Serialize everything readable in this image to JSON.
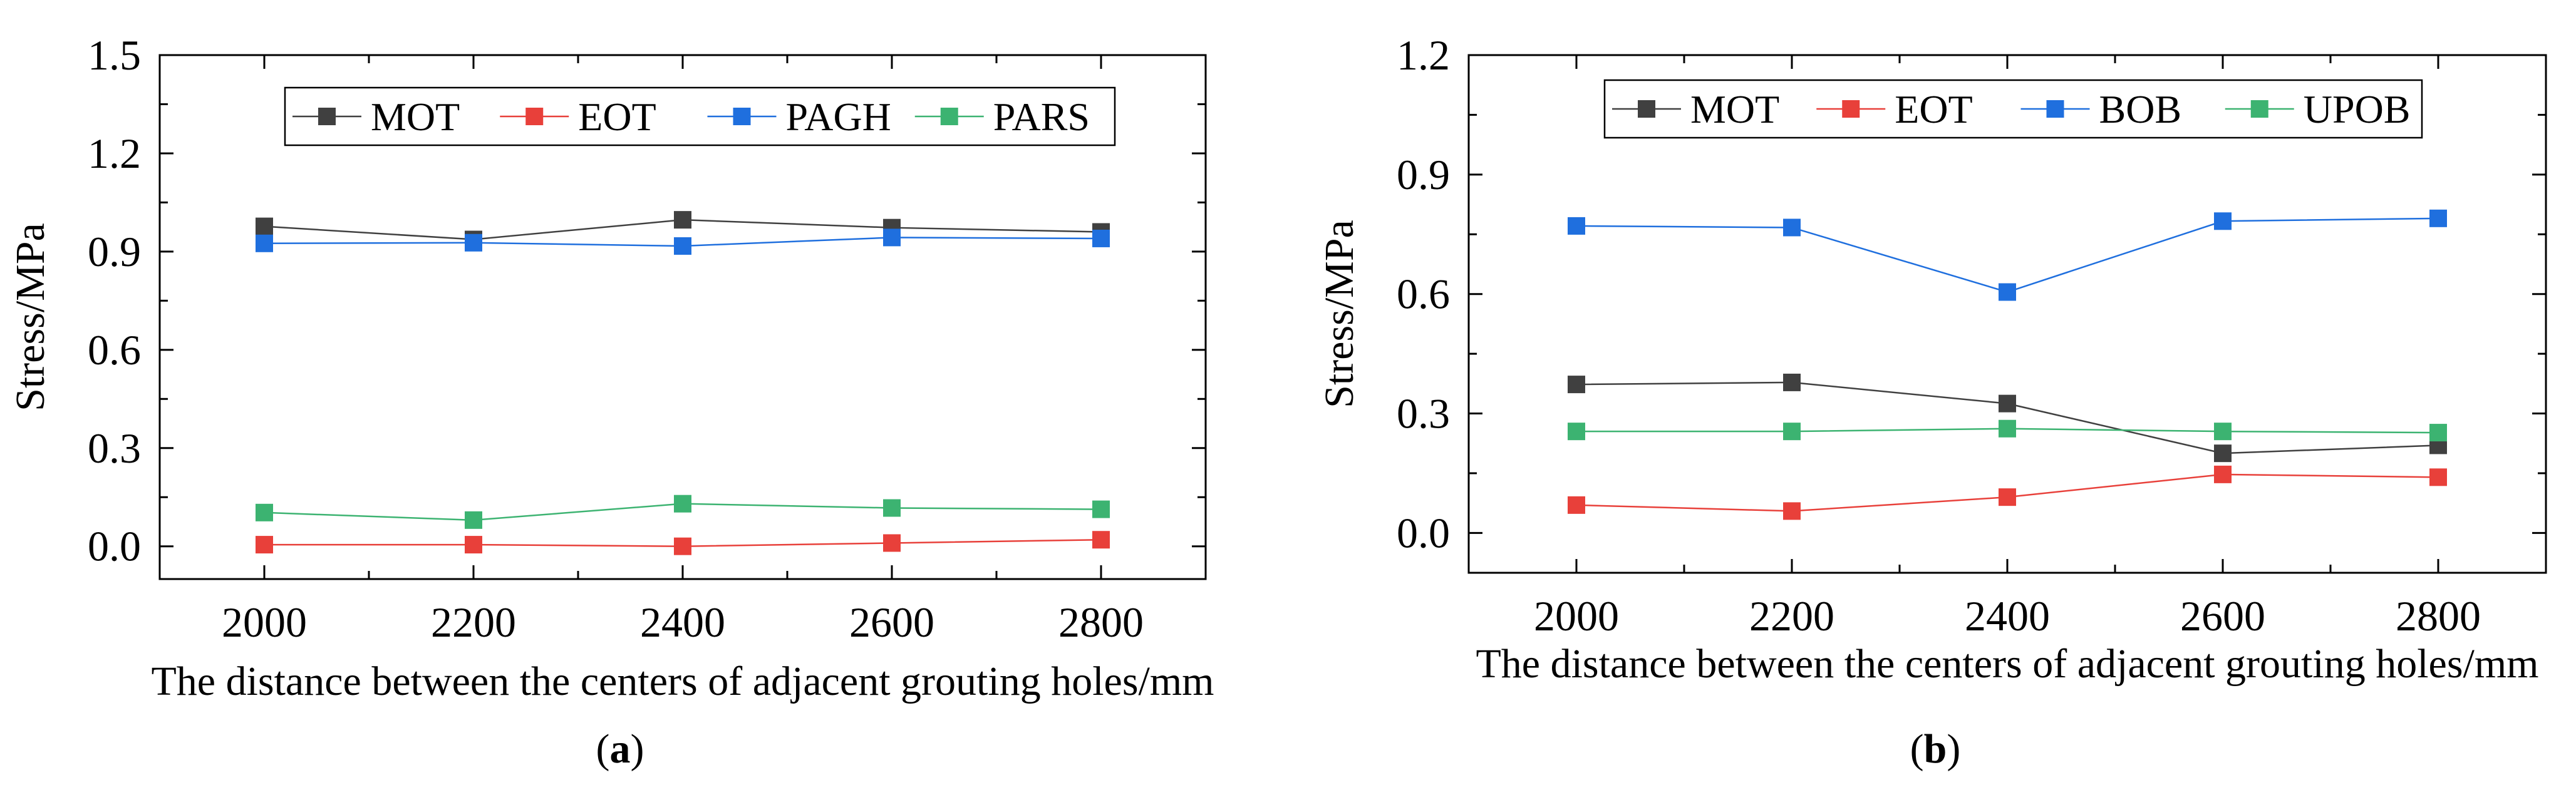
{
  "figure_labels": [
    "a",
    "b"
  ],
  "chart_data": [
    {
      "type": "line",
      "panel": "a",
      "xlabel": "The distance between the centers of adjacent grouting holes/mm",
      "ylabel": "Stress/MPa",
      "x": [
        2000,
        2200,
        2400,
        2600,
        2800
      ],
      "xticks": [
        2000,
        2200,
        2400,
        2600,
        2800
      ],
      "xtick_labels": [
        "2000",
        "2200",
        "2400",
        "2600",
        "2800"
      ],
      "xlim": [
        1900,
        2900
      ],
      "yticks": [
        0.0,
        0.3,
        0.6,
        0.9,
        1.2,
        1.5
      ],
      "ytick_labels": [
        "0.0",
        "0.3",
        "0.6",
        "0.9",
        "1.2",
        "1.5"
      ],
      "ylim": [
        -0.1,
        1.5
      ],
      "legend_position": "top",
      "series": [
        {
          "name": "MOT",
          "color": "#404040",
          "values": [
            0.977,
            0.937,
            0.997,
            0.973,
            0.96
          ]
        },
        {
          "name": "EOT",
          "color": "#e8403a",
          "values": [
            0.005,
            0.005,
            0.0,
            0.01,
            0.02
          ]
        },
        {
          "name": "PAGH",
          "color": "#1f6fde",
          "values": [
            0.925,
            0.927,
            0.917,
            0.943,
            0.94
          ]
        },
        {
          "name": "PARS",
          "color": "#3cb371",
          "values": [
            0.103,
            0.08,
            0.13,
            0.117,
            0.113
          ]
        }
      ]
    },
    {
      "type": "line",
      "panel": "b",
      "xlabel": "The distance between the centers of adjacent grouting holes/mm",
      "ylabel": "Stress/MPa",
      "x": [
        2000,
        2200,
        2400,
        2600,
        2800
      ],
      "xticks": [
        2000,
        2200,
        2400,
        2600,
        2800
      ],
      "xtick_labels": [
        "2000",
        "2200",
        "2400",
        "2600",
        "2800"
      ],
      "xlim": [
        1900,
        2900
      ],
      "yticks": [
        0.0,
        0.3,
        0.6,
        0.9,
        1.2
      ],
      "ytick_labels": [
        "0.0",
        "0.3",
        "0.6",
        "0.9",
        "1.2"
      ],
      "ylim": [
        -0.1,
        1.2
      ],
      "legend_position": "top",
      "series": [
        {
          "name": "MOT",
          "color": "#404040",
          "values": [
            0.373,
            0.378,
            0.325,
            0.2,
            0.22
          ]
        },
        {
          "name": "EOT",
          "color": "#e8403a",
          "values": [
            0.07,
            0.055,
            0.09,
            0.147,
            0.14
          ]
        },
        {
          "name": "BOB",
          "color": "#1f6fde",
          "values": [
            0.771,
            0.767,
            0.605,
            0.783,
            0.79
          ]
        },
        {
          "name": "UPOB",
          "color": "#3cb371",
          "values": [
            0.255,
            0.255,
            0.262,
            0.255,
            0.252
          ]
        }
      ]
    }
  ]
}
